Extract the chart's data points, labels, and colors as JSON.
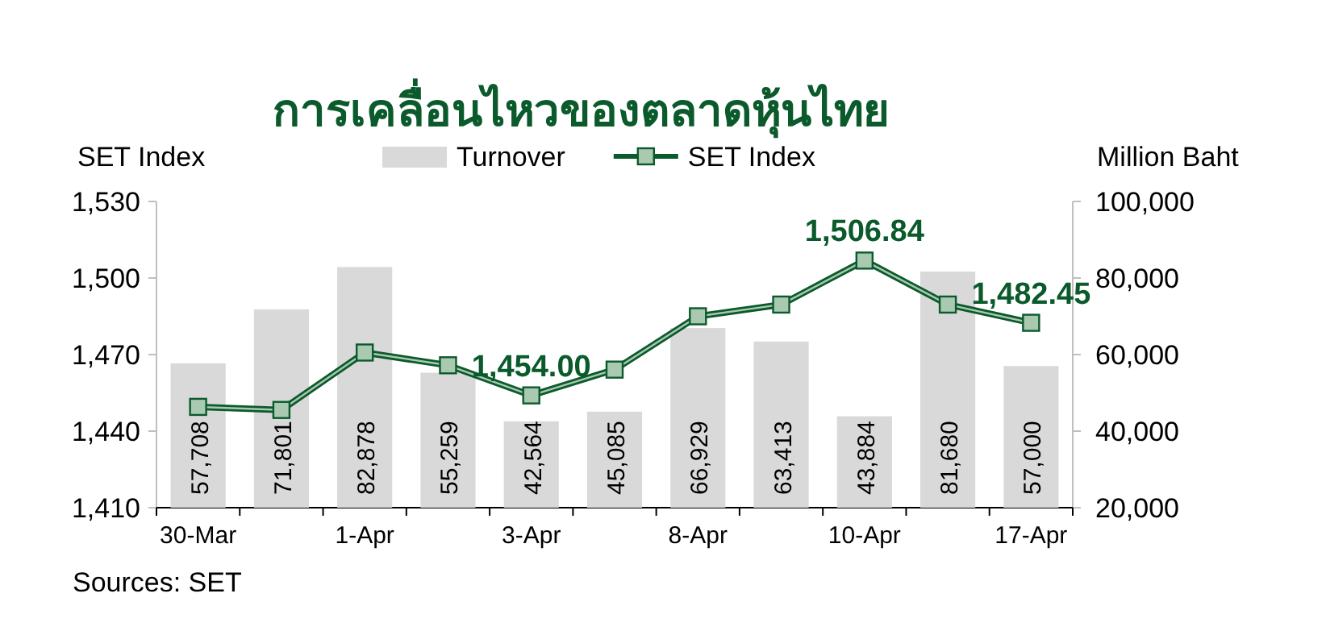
{
  "chart_data": {
    "type": "bar",
    "title": "การเคลื่อนไหวของตลาดหุ้นไทย",
    "ylabel": "SET Index",
    "y2label": "Million Baht",
    "categories": [
      "30-Mar",
      null,
      "1-Apr",
      null,
      "3-Apr",
      null,
      "8-Apr",
      null,
      "10-Apr",
      null,
      "17-Apr"
    ],
    "series": [
      {
        "name": "Turnover",
        "axis": "y2",
        "color": "#d9d9d9",
        "values": [
          57708,
          71801,
          82878,
          55259,
          42564,
          45085,
          66929,
          63413,
          43884,
          81680,
          57000
        ],
        "value_labels": [
          "57,708",
          "71,801",
          "82,878",
          "55,259",
          "42,564",
          "45,085",
          "66,929",
          "63,413",
          "43,884",
          "81,680",
          "57,000"
        ]
      },
      {
        "name": "SET Index",
        "type": "line",
        "axis": "y",
        "color": "#0b5a2c",
        "values": [
          1449.5,
          1448.3,
          1470.8,
          1465.8,
          1454.0,
          1464.1,
          1485.0,
          1489.6,
          1506.84,
          1489.6,
          1482.45
        ],
        "value_labels": [
          null,
          null,
          null,
          null,
          "1,454.00",
          null,
          null,
          null,
          "1,506.84",
          null,
          "1,482.45"
        ]
      }
    ],
    "ylim": [
      1410,
      1530
    ],
    "yticks": [
      {
        "value": 1410,
        "label": "1,410"
      },
      {
        "value": 1440,
        "label": "1,440"
      },
      {
        "value": 1470,
        "label": "1,470"
      },
      {
        "value": 1500,
        "label": "1,500"
      },
      {
        "value": 1530,
        "label": "1,530"
      }
    ],
    "y2lim": [
      20000,
      100000
    ],
    "y2ticks": [
      {
        "value": 20000,
        "label": "20,000"
      },
      {
        "value": 40000,
        "label": "40,000"
      },
      {
        "value": 60000,
        "label": "60,000"
      },
      {
        "value": 80000,
        "label": "80,000"
      },
      {
        "value": 100000,
        "label": "100,000"
      }
    ],
    "marker": "square",
    "legend": "top",
    "grid": false,
    "annotations": [
      "Sources: SET"
    ]
  }
}
